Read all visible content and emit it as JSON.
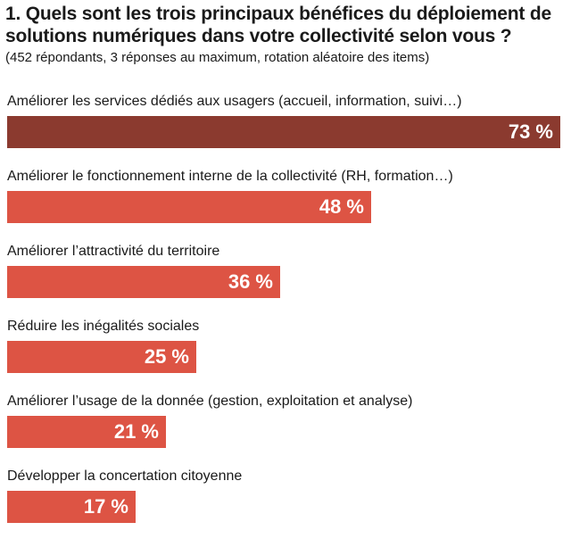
{
  "header": {
    "title": "1. Quels sont les trois principaux bénéfices du déploiement de solutions numériques dans votre collectivité selon vous ?",
    "subtitle": "(452 répondants, 3 réponses au maximum, rotation aléatoire des items)"
  },
  "colors": {
    "highlight": "#8b3a2f",
    "bar": "#dd5444",
    "text": "#1a1a1a"
  },
  "chart_data": {
    "type": "bar",
    "orientation": "horizontal",
    "title": "1. Quels sont les trois principaux bénéfices du déploiement de solutions numériques dans votre collectivité selon vous ?",
    "subtitle": "(452 répondants, 3 réponses au maximum, rotation aléatoire des items)",
    "xlim": [
      0,
      73
    ],
    "unit": "%",
    "categories": [
      "Améliorer les services dédiés aux usagers (accueil, information, suivi…)",
      "Améliorer le fonctionnement interne de la collectivité (RH, formation…)",
      "Améliorer l’attractivité du territoire",
      "Réduire les inégalités sociales",
      "Améliorer l’usage de la donnée (gestion, exploitation et analyse)",
      "Développer la concertation citoyenne"
    ],
    "values": [
      73,
      48,
      36,
      25,
      21,
      17
    ],
    "value_labels": [
      "73 %",
      "48 %",
      "36 %",
      "25 %",
      "21 %",
      "17 %"
    ],
    "highlight_index": 0
  }
}
